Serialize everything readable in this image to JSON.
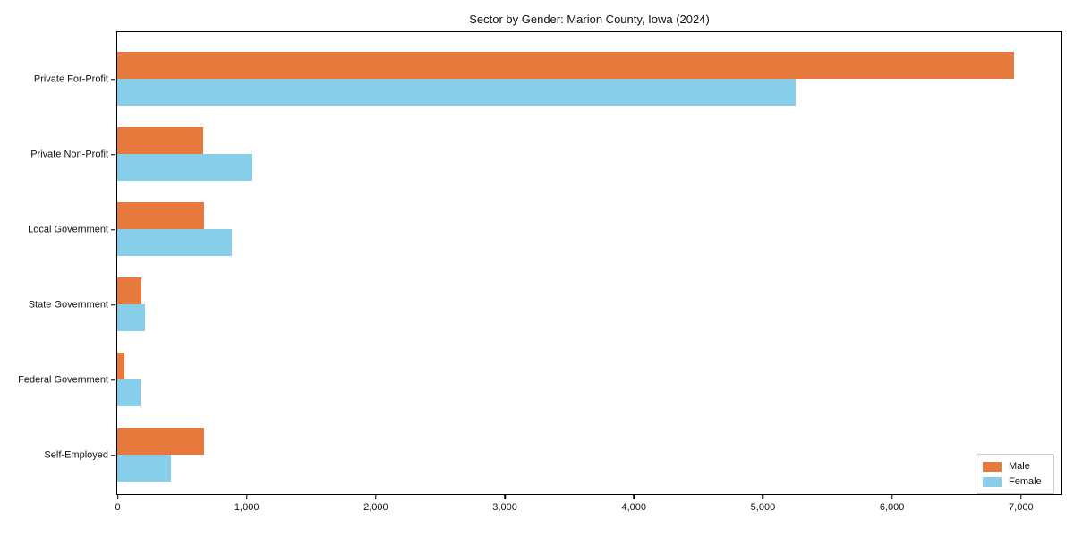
{
  "chart_data": {
    "type": "bar",
    "orientation": "horizontal",
    "title": "Sector by Gender: Marion County, Iowa (2024)",
    "categories": [
      "Private For-Profit",
      "Private Non-Profit",
      "Local Government",
      "State Government",
      "Federal Government",
      "Self-Employed"
    ],
    "series": [
      {
        "name": "Male",
        "color": "#e8793d",
        "values": [
          6950,
          665,
          670,
          185,
          55,
          670
        ]
      },
      {
        "name": "Female",
        "color": "#87ceeb",
        "values": [
          5260,
          1050,
          885,
          215,
          180,
          415
        ]
      }
    ],
    "xlabel": "",
    "ylabel": "",
    "xlim": [
      0,
      7310
    ],
    "xticks": {
      "values": [
        0,
        1000,
        2000,
        3000,
        4000,
        5000,
        6000,
        7000
      ],
      "labels": [
        "0",
        "1,000",
        "2,000",
        "3,000",
        "4,000",
        "5,000",
        "6,000",
        "7,000"
      ]
    },
    "grid": false,
    "legend_position": "lower right"
  }
}
